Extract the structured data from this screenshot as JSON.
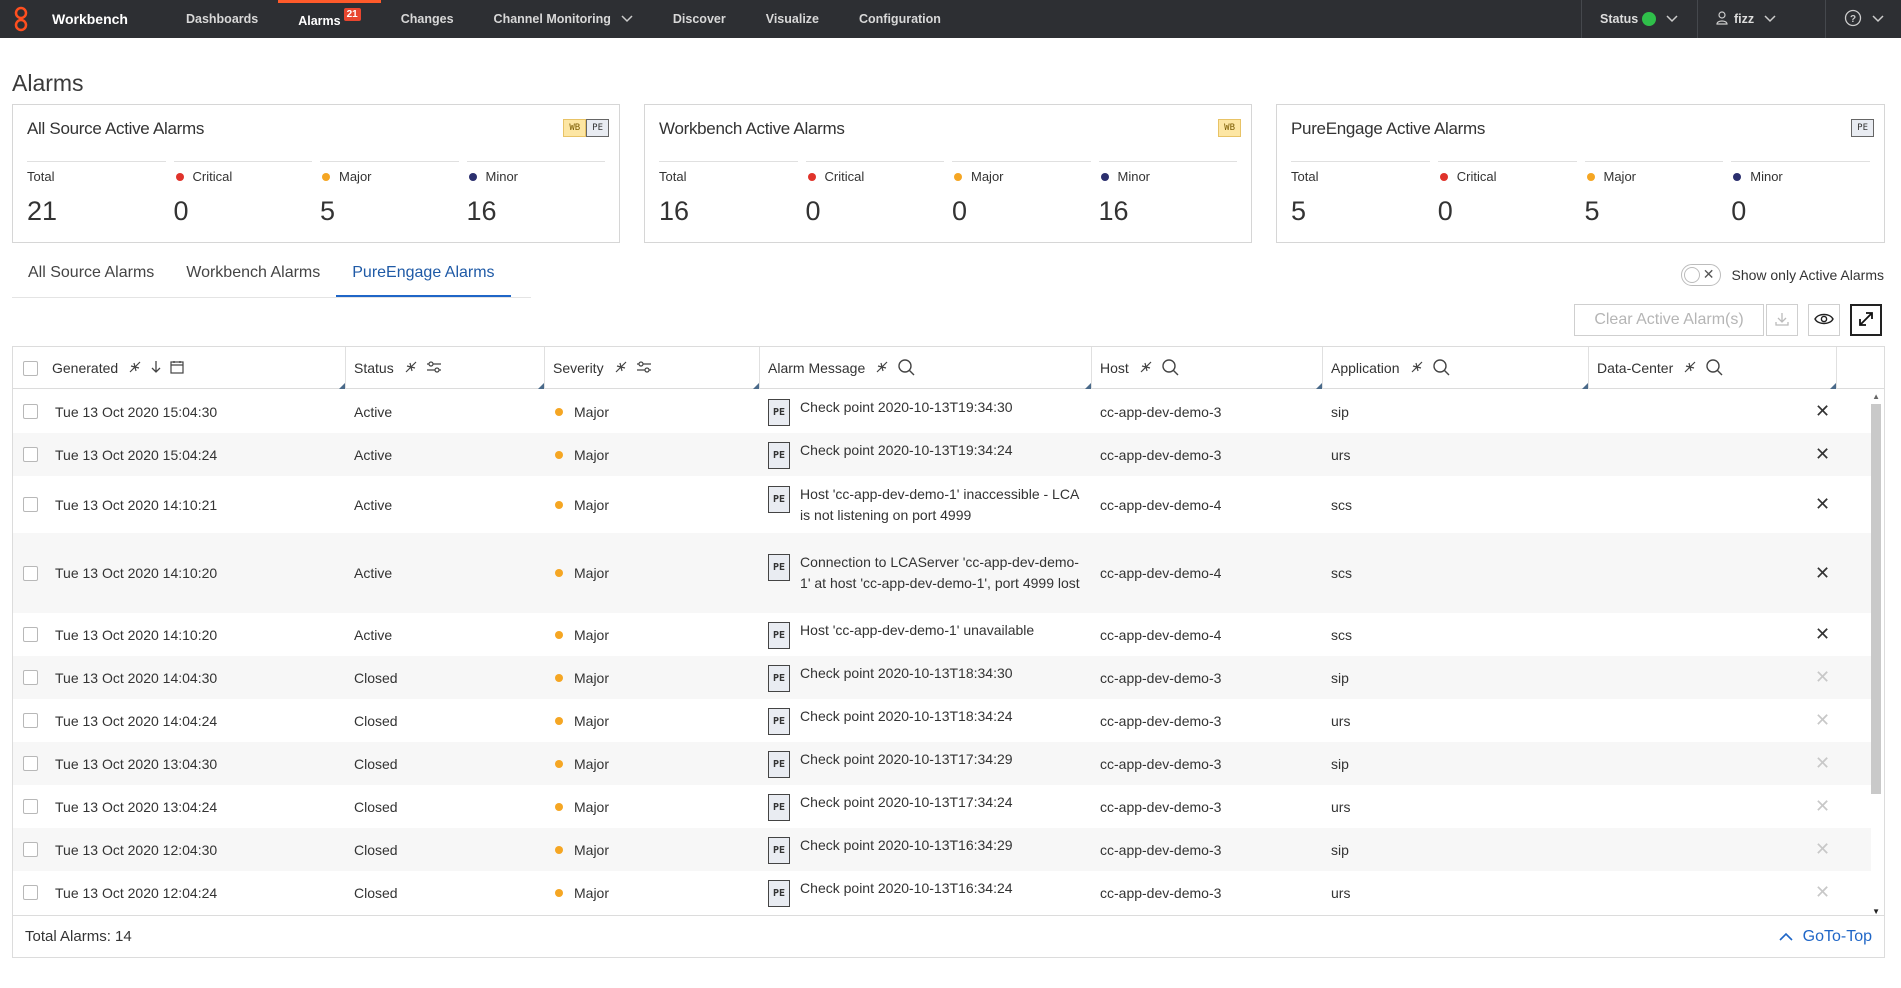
{
  "app": {
    "brand": "Workbench"
  },
  "nav": {
    "items": [
      {
        "label": "Dashboards"
      },
      {
        "label": "Alarms",
        "badge": "21"
      },
      {
        "label": "Changes"
      },
      {
        "label": "Channel Monitoring"
      },
      {
        "label": "Discover"
      },
      {
        "label": "Visualize"
      },
      {
        "label": "Configuration"
      }
    ],
    "status_label": "Status",
    "user": "fizz"
  },
  "page": {
    "title": "Alarms"
  },
  "cards": [
    {
      "title": "All Source Active Alarms",
      "tags": [
        "WB",
        "PE"
      ],
      "total": "21",
      "critical": "0",
      "major": "5",
      "minor": "16"
    },
    {
      "title": "Workbench Active Alarms",
      "tags": [
        "WB"
      ],
      "total": "16",
      "critical": "0",
      "major": "0",
      "minor": "16"
    },
    {
      "title": "PureEngage Active Alarms",
      "tags": [
        "PE"
      ],
      "total": "5",
      "critical": "0",
      "major": "5",
      "minor": "0"
    }
  ],
  "stat_labels": {
    "total": "Total",
    "critical": "Critical",
    "major": "Major",
    "minor": "Minor"
  },
  "colors": {
    "critical": "#e0332b",
    "major": "#f5a623",
    "minor": "#2b2f6e",
    "accent": "#1f66c7",
    "topbar": "#2d2f33"
  },
  "tabs": [
    "All Source Alarms",
    "Workbench Alarms",
    "PureEngage Alarms"
  ],
  "active_tab": "PureEngage Alarms",
  "toggle_label": "Show only Active Alarms",
  "actions": {
    "clear": "Clear Active Alarm(s)"
  },
  "table": {
    "columns": [
      "Generated",
      "Status",
      "Severity",
      "Alarm Message",
      "Host",
      "Application",
      "Data-Center"
    ],
    "rows": [
      {
        "generated": "Tue 13 Oct 2020 15:04:30",
        "status": "Active",
        "severity": "Major",
        "source": "PE",
        "message": "Check point 2020-10-13T19:34:30",
        "host": "cc-app-dev-demo-3",
        "app": "sip",
        "dc": ""
      },
      {
        "generated": "Tue 13 Oct 2020 15:04:24",
        "status": "Active",
        "severity": "Major",
        "source": "PE",
        "message": "Check point 2020-10-13T19:34:24",
        "host": "cc-app-dev-demo-3",
        "app": "urs",
        "dc": ""
      },
      {
        "generated": "Tue 13 Oct 2020 14:10:21",
        "status": "Active",
        "severity": "Major",
        "source": "PE",
        "message": "Host 'cc-app-dev-demo-1' inaccessible - LCA is not listening on port 4999",
        "host": "cc-app-dev-demo-4",
        "app": "scs",
        "dc": ""
      },
      {
        "generated": "Tue 13 Oct 2020 14:10:20",
        "status": "Active",
        "severity": "Major",
        "source": "PE",
        "message": "Connection to LCAServer 'cc-app-dev-demo-1' at host 'cc-app-dev-demo-1', port 4999 lost",
        "host": "cc-app-dev-demo-4",
        "app": "scs",
        "dc": ""
      },
      {
        "generated": "Tue 13 Oct 2020 14:10:20",
        "status": "Active",
        "severity": "Major",
        "source": "PE",
        "message": "Host 'cc-app-dev-demo-1' unavailable",
        "host": "cc-app-dev-demo-4",
        "app": "scs",
        "dc": ""
      },
      {
        "generated": "Tue 13 Oct 2020 14:04:30",
        "status": "Closed",
        "severity": "Major",
        "source": "PE",
        "message": "Check point 2020-10-13T18:34:30",
        "host": "cc-app-dev-demo-3",
        "app": "sip",
        "dc": ""
      },
      {
        "generated": "Tue 13 Oct 2020 14:04:24",
        "status": "Closed",
        "severity": "Major",
        "source": "PE",
        "message": "Check point 2020-10-13T18:34:24",
        "host": "cc-app-dev-demo-3",
        "app": "urs",
        "dc": ""
      },
      {
        "generated": "Tue 13 Oct 2020 13:04:30",
        "status": "Closed",
        "severity": "Major",
        "source": "PE",
        "message": "Check point 2020-10-13T17:34:29",
        "host": "cc-app-dev-demo-3",
        "app": "sip",
        "dc": ""
      },
      {
        "generated": "Tue 13 Oct 2020 13:04:24",
        "status": "Closed",
        "severity": "Major",
        "source": "PE",
        "message": "Check point 2020-10-13T17:34:24",
        "host": "cc-app-dev-demo-3",
        "app": "urs",
        "dc": ""
      },
      {
        "generated": "Tue 13 Oct 2020 12:04:30",
        "status": "Closed",
        "severity": "Major",
        "source": "PE",
        "message": "Check point 2020-10-13T16:34:29",
        "host": "cc-app-dev-demo-3",
        "app": "sip",
        "dc": ""
      },
      {
        "generated": "Tue 13 Oct 2020 12:04:24",
        "status": "Closed",
        "severity": "Major",
        "source": "PE",
        "message": "Check point 2020-10-13T16:34:24",
        "host": "cc-app-dev-demo-3",
        "app": "urs",
        "dc": ""
      }
    ]
  },
  "footer": {
    "total": "Total Alarms: 14",
    "goto": "GoTo-Top"
  }
}
